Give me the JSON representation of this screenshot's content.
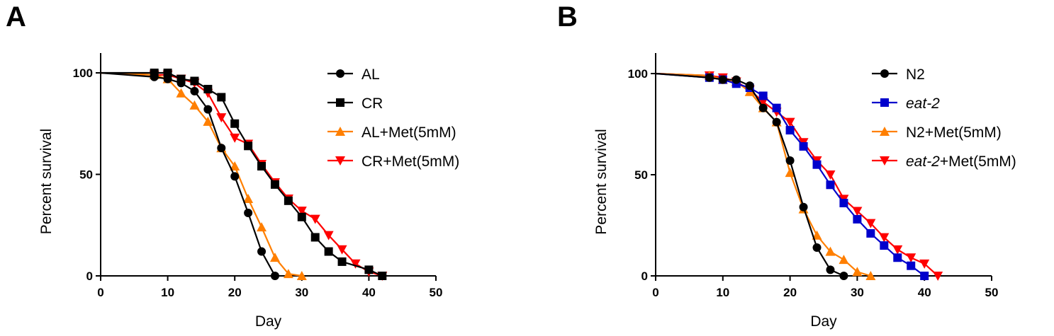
{
  "chart_data": [
    {
      "panel": "A",
      "type": "line",
      "xlabel": "Day",
      "ylabel": "Percent survival",
      "xlim": [
        0,
        50
      ],
      "ylim": [
        0,
        100
      ],
      "xticks": [
        "0",
        "10",
        "20",
        "30",
        "40",
        "50"
      ],
      "yticks": [
        "0",
        "50",
        "100"
      ],
      "legend_position": "right",
      "series": [
        {
          "name": "AL",
          "color": "#000000",
          "marker": "circle",
          "x": [
            0,
            8,
            10,
            12,
            14,
            16,
            18,
            20,
            22,
            24,
            26
          ],
          "y": [
            100,
            98,
            97,
            95,
            91,
            82,
            63,
            49,
            31,
            12,
            0
          ]
        },
        {
          "name": "CR",
          "color": "#000000",
          "marker": "square",
          "x": [
            0,
            8,
            10,
            12,
            14,
            16,
            18,
            20,
            22,
            24,
            26,
            28,
            30,
            32,
            34,
            36,
            40,
            42
          ],
          "y": [
            100,
            100,
            100,
            97,
            96,
            92,
            88,
            75,
            64,
            54,
            45,
            37,
            29,
            19,
            12,
            7,
            3,
            0
          ]
        },
        {
          "name": "AL+Met(5mM)",
          "color": "#FF7F00",
          "marker": "triangle-up",
          "x": [
            0,
            8,
            10,
            12,
            14,
            16,
            18,
            20,
            22,
            24,
            26,
            28,
            30
          ],
          "y": [
            100,
            99,
            97,
            90,
            84,
            76,
            63,
            54,
            38,
            24,
            9,
            1,
            0
          ]
        },
        {
          "name": "CR+Met(5mM)",
          "color": "#FF0000",
          "marker": "triangle-down",
          "x": [
            0,
            8,
            10,
            12,
            14,
            16,
            18,
            20,
            22,
            24,
            26,
            28,
            30,
            32,
            34,
            36,
            38,
            40,
            42
          ],
          "y": [
            100,
            99,
            99,
            97,
            95,
            90,
            78,
            68,
            65,
            55,
            46,
            38,
            32,
            28,
            20,
            13,
            6,
            2,
            0
          ]
        }
      ]
    },
    {
      "panel": "B",
      "type": "line",
      "xlabel": "Day",
      "ylabel": "Percent survival",
      "xlim": [
        0,
        50
      ],
      "ylim": [
        0,
        100
      ],
      "xticks": [
        "0",
        "10",
        "20",
        "30",
        "40",
        "50"
      ],
      "yticks": [
        "0",
        "50",
        "100"
      ],
      "legend_position": "top-right",
      "series": [
        {
          "name": "N2",
          "italic": false,
          "color": "#000000",
          "marker": "circle",
          "x": [
            0,
            8,
            10,
            12,
            14,
            16,
            18,
            20,
            22,
            24,
            26,
            28
          ],
          "y": [
            100,
            98,
            97,
            97,
            94,
            83,
            76,
            57,
            34,
            14,
            3,
            0
          ]
        },
        {
          "name": "eat-2",
          "italic": true,
          "color": "#0000CC",
          "marker": "square",
          "x": [
            0,
            8,
            10,
            12,
            14,
            16,
            18,
            20,
            22,
            24,
            26,
            28,
            30,
            32,
            34,
            36,
            38,
            40
          ],
          "y": [
            100,
            98,
            97,
            95,
            93,
            89,
            83,
            72,
            64,
            55,
            45,
            36,
            28,
            21,
            15,
            9,
            5,
            0
          ]
        },
        {
          "name": "N2+Met(5mM)",
          "italic": false,
          "color": "#FF7F00",
          "marker": "triangle-up",
          "x": [
            0,
            8,
            10,
            12,
            14,
            16,
            18,
            20,
            22,
            24,
            26,
            28,
            30,
            32
          ],
          "y": [
            100,
            99,
            97,
            96,
            91,
            83,
            76,
            51,
            33,
            20,
            12,
            8,
            2,
            0
          ]
        },
        {
          "name": "eat-2+Met(5mM)",
          "italic": false,
          "italic_prefix": "eat-2",
          "suffix": "+Met(5mM)",
          "color": "#FF0000",
          "marker": "triangle-down",
          "x": [
            0,
            8,
            10,
            12,
            14,
            16,
            18,
            20,
            22,
            24,
            26,
            28,
            30,
            32,
            34,
            36,
            38,
            40,
            42
          ],
          "y": [
            100,
            99,
            98,
            96,
            92,
            86,
            81,
            76,
            66,
            57,
            50,
            38,
            32,
            26,
            19,
            13,
            9,
            6,
            0
          ]
        }
      ]
    }
  ]
}
